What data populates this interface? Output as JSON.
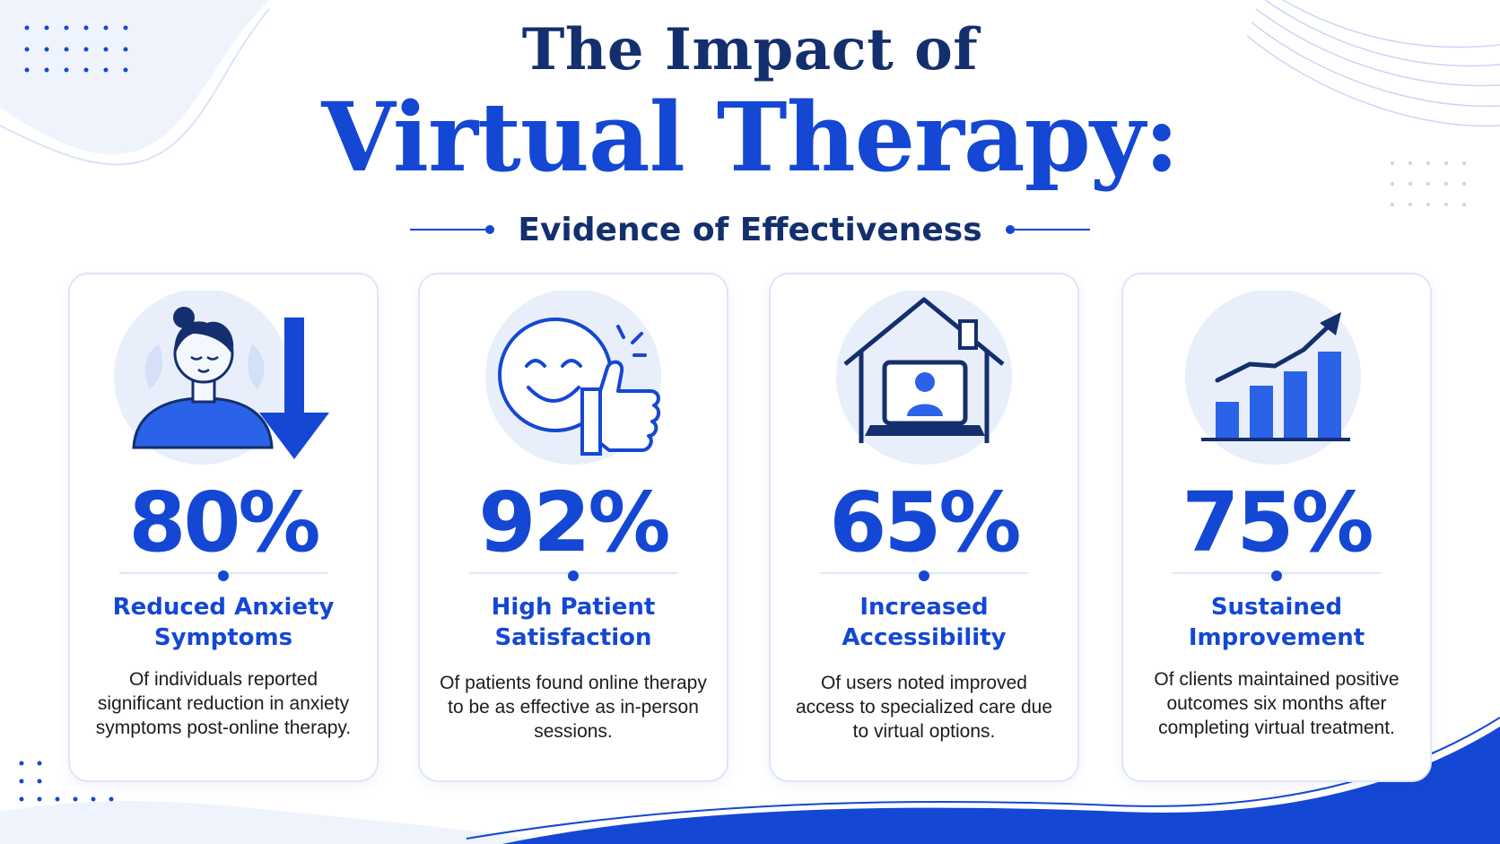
{
  "header": {
    "title_line1": "The Impact of",
    "title_line2": "Virtual Therapy:",
    "subtitle": "Evidence of Effectiveness"
  },
  "colors": {
    "primary_blue": "#1447d4",
    "navy": "#142f6e",
    "light_blue": "#e8effb",
    "text": "#1c1c1c"
  },
  "cards": [
    {
      "icon": "woman-relaxed-down-arrow-icon",
      "value": "80%",
      "title": "Reduced Anxiety Symptoms",
      "description": "Of individuals reported significant reduction in anxiety symptoms post-online therapy."
    },
    {
      "icon": "smiley-thumbs-up-icon",
      "value": "92%",
      "title": "High Patient Satisfaction",
      "description": "Of patients found online therapy to be as effective as in-person sessions."
    },
    {
      "icon": "house-laptop-icon",
      "value": "65%",
      "title": "Increased Accessibility",
      "description": "Of users noted improved access to specialized care due to virtual options."
    },
    {
      "icon": "rising-bar-chart-icon",
      "value": "75%",
      "title": "Sustained Improvement",
      "description": "Of clients maintained positive outcomes six months after completing virtual treatment."
    }
  ]
}
